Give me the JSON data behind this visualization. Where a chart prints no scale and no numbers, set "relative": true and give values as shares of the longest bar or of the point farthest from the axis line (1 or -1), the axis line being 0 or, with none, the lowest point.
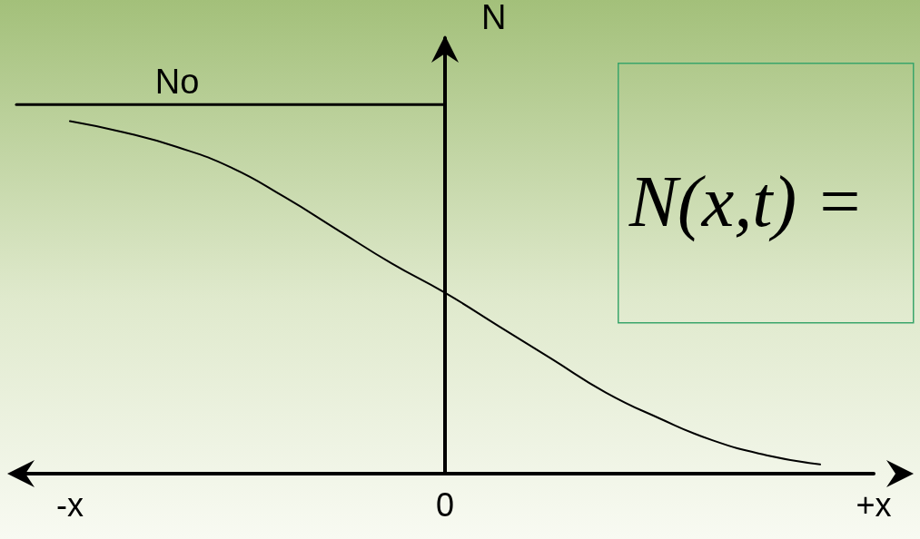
{
  "chart_data": {
    "type": "line",
    "relative": true,
    "ylabel": "N",
    "categories": [
      null,
      "-x",
      null,
      null,
      null,
      null,
      null,
      null,
      "0",
      null,
      null,
      null,
      null,
      null,
      null,
      null,
      "+x"
    ],
    "series": [
      {
        "name": "No",
        "color": "#000000",
        "values": [
          1,
          1,
          1,
          1,
          1,
          1,
          1,
          1,
          1,
          null,
          null,
          null,
          null,
          null,
          null,
          null,
          null
        ]
      },
      {
        "color": "#000000",
        "values": [
          null,
          0.955,
          0.925,
          0.885,
          0.83,
          0.75,
          0.66,
          0.57,
          0.49,
          0.4,
          0.31,
          0.22,
          0.15,
          0.09,
          0.05,
          0.025,
          null
        ]
      }
    ],
    "annotations": [
      "N(x,t) ="
    ],
    "legend": false,
    "grid": false,
    "marker": "none",
    "line_style": "solid"
  }
}
